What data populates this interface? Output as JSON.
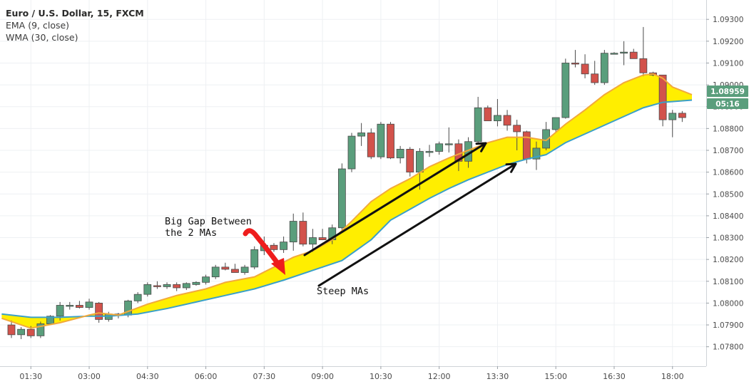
{
  "legend": {
    "title": "Euro / U.S. Dollar, 15, FXCM",
    "ema": "EMA (9, close)",
    "wma": "WMA (30, close)"
  },
  "badges": {
    "price": "1.08959",
    "timer": "05:16"
  },
  "annotations": {
    "gap_line1": "Big Gap Between",
    "gap_line2": "the 2 MAs",
    "steep": "Steep MAs"
  },
  "colors": {
    "bull": "#5a9e7c",
    "bear": "#d2524b",
    "ema": "#f2a93b",
    "wma": "#3aa0c8",
    "fill": "#ffee00",
    "badge": "#5a9e7c",
    "arrow_red": "#ee1c1c"
  },
  "chart_data": {
    "type": "candlestick",
    "title": "Euro / U.S. Dollar, 15, FXCM",
    "x_ticks": [
      "01:30",
      "03:00",
      "04:30",
      "06:00",
      "07:30",
      "09:00",
      "10:30",
      "12:00",
      "13:30",
      "15:00",
      "16:30",
      "18:00"
    ],
    "y_ticks": [
      "1.07800",
      "1.07900",
      "1.08000",
      "1.08100",
      "1.08200",
      "1.08300",
      "1.08400",
      "1.08500",
      "1.08600",
      "1.08700",
      "1.08800",
      "1.08900",
      "1.09000",
      "1.09100",
      "1.09200",
      "1.09300"
    ],
    "ylim": [
      1.0775,
      1.0933
    ],
    "xlim": [
      "01:00",
      "18:30"
    ],
    "candles": [
      {
        "t": "01:00",
        "o": 1.079,
        "h": 1.0792,
        "l": 1.0784,
        "c": 1.07855
      },
      {
        "t": "01:15",
        "o": 1.07855,
        "h": 1.0789,
        "l": 1.07835,
        "c": 1.0788
      },
      {
        "t": "01:30",
        "o": 1.0788,
        "h": 1.07895,
        "l": 1.0784,
        "c": 1.0785
      },
      {
        "t": "01:45",
        "o": 1.0785,
        "h": 1.07915,
        "l": 1.0784,
        "c": 1.07905
      },
      {
        "t": "02:00",
        "o": 1.07905,
        "h": 1.07945,
        "l": 1.079,
        "c": 1.0794
      },
      {
        "t": "02:15",
        "o": 1.0794,
        "h": 1.08005,
        "l": 1.0792,
        "c": 1.0799
      },
      {
        "t": "02:30",
        "o": 1.0799,
        "h": 1.08005,
        "l": 1.0797,
        "c": 1.0799
      },
      {
        "t": "02:45",
        "o": 1.0799,
        "h": 1.0801,
        "l": 1.07975,
        "c": 1.0798
      },
      {
        "t": "03:00",
        "o": 1.0798,
        "h": 1.0802,
        "l": 1.0797,
        "c": 1.08005
      },
      {
        "t": "03:15",
        "o": 1.08,
        "h": 1.08005,
        "l": 1.0791,
        "c": 1.07925
      },
      {
        "t": "03:30",
        "o": 1.07925,
        "h": 1.0796,
        "l": 1.07915,
        "c": 1.0795
      },
      {
        "t": "03:45",
        "o": 1.0795,
        "h": 1.07955,
        "l": 1.0793,
        "c": 1.07945
      },
      {
        "t": "04:00",
        "o": 1.07945,
        "h": 1.08015,
        "l": 1.07935,
        "c": 1.0801
      },
      {
        "t": "04:15",
        "o": 1.0801,
        "h": 1.0805,
        "l": 1.08,
        "c": 1.0804
      },
      {
        "t": "04:30",
        "o": 1.0804,
        "h": 1.08095,
        "l": 1.0803,
        "c": 1.08085
      },
      {
        "t": "04:45",
        "o": 1.0808,
        "h": 1.081,
        "l": 1.08065,
        "c": 1.08075
      },
      {
        "t": "05:00",
        "o": 1.08075,
        "h": 1.08095,
        "l": 1.08065,
        "c": 1.08085
      },
      {
        "t": "05:15",
        "o": 1.08085,
        "h": 1.08095,
        "l": 1.08055,
        "c": 1.0807
      },
      {
        "t": "05:30",
        "o": 1.0807,
        "h": 1.08095,
        "l": 1.0806,
        "c": 1.0809
      },
      {
        "t": "05:45",
        "o": 1.08085,
        "h": 1.081,
        "l": 1.0808,
        "c": 1.08095
      },
      {
        "t": "06:00",
        "o": 1.08095,
        "h": 1.0813,
        "l": 1.08085,
        "c": 1.0812
      },
      {
        "t": "06:15",
        "o": 1.0812,
        "h": 1.08175,
        "l": 1.0811,
        "c": 1.08165
      },
      {
        "t": "06:30",
        "o": 1.08165,
        "h": 1.08185,
        "l": 1.0815,
        "c": 1.08155
      },
      {
        "t": "06:45",
        "o": 1.08155,
        "h": 1.0818,
        "l": 1.0814,
        "c": 1.0814
      },
      {
        "t": "07:00",
        "o": 1.0814,
        "h": 1.08175,
        "l": 1.0813,
        "c": 1.08165
      },
      {
        "t": "07:15",
        "o": 1.08165,
        "h": 1.0826,
        "l": 1.08155,
        "c": 1.08245
      },
      {
        "t": "07:30",
        "o": 1.0824,
        "h": 1.08305,
        "l": 1.0822,
        "c": 1.08265
      },
      {
        "t": "07:45",
        "o": 1.08265,
        "h": 1.08275,
        "l": 1.08235,
        "c": 1.08245
      },
      {
        "t": "08:00",
        "o": 1.08245,
        "h": 1.08305,
        "l": 1.0823,
        "c": 1.0828
      },
      {
        "t": "08:15",
        "o": 1.0828,
        "h": 1.0841,
        "l": 1.0824,
        "c": 1.08375
      },
      {
        "t": "08:30",
        "o": 1.08375,
        "h": 1.08415,
        "l": 1.0826,
        "c": 1.0827
      },
      {
        "t": "08:45",
        "o": 1.0827,
        "h": 1.0834,
        "l": 1.08235,
        "c": 1.083
      },
      {
        "t": "09:00",
        "o": 1.083,
        "h": 1.0834,
        "l": 1.0829,
        "c": 1.0829
      },
      {
        "t": "09:15",
        "o": 1.0829,
        "h": 1.0836,
        "l": 1.0827,
        "c": 1.08345
      },
      {
        "t": "09:30",
        "o": 1.08345,
        "h": 1.0864,
        "l": 1.0833,
        "c": 1.08615
      },
      {
        "t": "09:45",
        "o": 1.08615,
        "h": 1.0878,
        "l": 1.086,
        "c": 1.08765
      },
      {
        "t": "10:00",
        "o": 1.08765,
        "h": 1.08825,
        "l": 1.0872,
        "c": 1.0878
      },
      {
        "t": "10:15",
        "o": 1.0878,
        "h": 1.088,
        "l": 1.0866,
        "c": 1.0867
      },
      {
        "t": "10:30",
        "o": 1.0867,
        "h": 1.0883,
        "l": 1.0866,
        "c": 1.0882
      },
      {
        "t": "10:45",
        "o": 1.0882,
        "h": 1.0883,
        "l": 1.0866,
        "c": 1.08665
      },
      {
        "t": "11:00",
        "o": 1.08665,
        "h": 1.0872,
        "l": 1.0864,
        "c": 1.08705
      },
      {
        "t": "11:15",
        "o": 1.08705,
        "h": 1.08715,
        "l": 1.0858,
        "c": 1.086
      },
      {
        "t": "11:30",
        "o": 1.086,
        "h": 1.0871,
        "l": 1.0852,
        "c": 1.08695
      },
      {
        "t": "11:45",
        "o": 1.08695,
        "h": 1.08725,
        "l": 1.0867,
        "c": 1.08695
      },
      {
        "t": "12:00",
        "o": 1.08695,
        "h": 1.0874,
        "l": 1.0868,
        "c": 1.0873
      },
      {
        "t": "12:15",
        "o": 1.0873,
        "h": 1.08805,
        "l": 1.0869,
        "c": 1.0873
      },
      {
        "t": "12:30",
        "o": 1.0873,
        "h": 1.0875,
        "l": 1.08605,
        "c": 1.0865
      },
      {
        "t": "12:45",
        "o": 1.0865,
        "h": 1.0876,
        "l": 1.0862,
        "c": 1.0874
      },
      {
        "t": "13:00",
        "o": 1.0874,
        "h": 1.08945,
        "l": 1.0873,
        "c": 1.08895
      },
      {
        "t": "13:15",
        "o": 1.08895,
        "h": 1.08905,
        "l": 1.0884,
        "c": 1.08835
      },
      {
        "t": "13:30",
        "o": 1.08835,
        "h": 1.08935,
        "l": 1.0881,
        "c": 1.0886
      },
      {
        "t": "13:45",
        "o": 1.0886,
        "h": 1.08885,
        "l": 1.0879,
        "c": 1.08815
      },
      {
        "t": "14:00",
        "o": 1.08815,
        "h": 1.0884,
        "l": 1.087,
        "c": 1.08785
      },
      {
        "t": "14:15",
        "o": 1.08785,
        "h": 1.0879,
        "l": 1.0864,
        "c": 1.0866
      },
      {
        "t": "14:30",
        "o": 1.0866,
        "h": 1.0874,
        "l": 1.0861,
        "c": 1.0871
      },
      {
        "t": "14:45",
        "o": 1.0871,
        "h": 1.0883,
        "l": 1.087,
        "c": 1.08795
      },
      {
        "t": "15:00",
        "o": 1.08795,
        "h": 1.0885,
        "l": 1.0878,
        "c": 1.0885
      },
      {
        "t": "15:15",
        "o": 1.0885,
        "h": 1.0912,
        "l": 1.08845,
        "c": 1.091
      },
      {
        "t": "15:30",
        "o": 1.091,
        "h": 1.0916,
        "l": 1.0908,
        "c": 1.09095
      },
      {
        "t": "15:45",
        "o": 1.09095,
        "h": 1.0914,
        "l": 1.0903,
        "c": 1.0905
      },
      {
        "t": "16:00",
        "o": 1.0905,
        "h": 1.0911,
        "l": 1.09,
        "c": 1.0901
      },
      {
        "t": "16:15",
        "o": 1.0901,
        "h": 1.0916,
        "l": 1.09,
        "c": 1.09145
      },
      {
        "t": "16:30",
        "o": 1.0914,
        "h": 1.0915,
        "l": 1.0914,
        "c": 1.09145
      },
      {
        "t": "16:45",
        "o": 1.09145,
        "h": 1.092,
        "l": 1.0909,
        "c": 1.0915
      },
      {
        "t": "17:00",
        "o": 1.0915,
        "h": 1.09165,
        "l": 1.0912,
        "c": 1.0912
      },
      {
        "t": "17:15",
        "o": 1.0912,
        "h": 1.09265,
        "l": 1.0904,
        "c": 1.09055
      },
      {
        "t": "17:30",
        "o": 1.09055,
        "h": 1.0906,
        "l": 1.0904,
        "c": 1.09045
      },
      {
        "t": "17:45",
        "o": 1.09045,
        "h": 1.09045,
        "l": 1.0881,
        "c": 1.0884
      },
      {
        "t": "18:00",
        "o": 1.0884,
        "h": 1.08885,
        "l": 1.0876,
        "c": 1.0887
      },
      {
        "t": "18:15",
        "o": 1.0887,
        "h": 1.0888,
        "l": 1.0883,
        "c": 1.0885
      }
    ],
    "series": [
      {
        "name": "EMA (9, close)",
        "type": "line",
        "points": [
          [
            "00:45",
            1.0793
          ],
          [
            "01:30",
            1.07885
          ],
          [
            "02:15",
            1.0791
          ],
          [
            "03:00",
            1.07945
          ],
          [
            "03:15",
            1.07955
          ],
          [
            "03:45",
            1.07945
          ],
          [
            "04:30",
            1.07995
          ],
          [
            "05:15",
            1.08035
          ],
          [
            "06:00",
            1.08065
          ],
          [
            "06:30",
            1.08095
          ],
          [
            "07:15",
            1.0812
          ],
          [
            "07:45",
            1.08165
          ],
          [
            "08:15",
            1.0821
          ],
          [
            "08:45",
            1.0824
          ],
          [
            "09:15",
            1.0829
          ],
          [
            "09:45",
            1.08375
          ],
          [
            "10:15",
            1.08465
          ],
          [
            "10:45",
            1.08525
          ],
          [
            "11:15",
            1.0857
          ],
          [
            "11:45",
            1.08625
          ],
          [
            "12:15",
            1.08665
          ],
          [
            "12:45",
            1.087
          ],
          [
            "13:15",
            1.08735
          ],
          [
            "13:45",
            1.0876
          ],
          [
            "14:15",
            1.0876
          ],
          [
            "14:45",
            1.08745
          ],
          [
            "15:15",
            1.0882
          ],
          [
            "15:45",
            1.08885
          ],
          [
            "16:15",
            1.08955
          ],
          [
            "16:45",
            1.0901
          ],
          [
            "17:15",
            1.09045
          ],
          [
            "17:30",
            1.0905
          ],
          [
            "17:45",
            1.0903
          ],
          [
            "18:00",
            1.0899
          ],
          [
            "18:30",
            1.08955
          ]
        ]
      },
      {
        "name": "WMA (30, close)",
        "type": "line",
        "points": [
          [
            "00:45",
            1.0795
          ],
          [
            "01:30",
            1.07935
          ],
          [
            "02:15",
            1.07935
          ],
          [
            "03:00",
            1.0794
          ],
          [
            "03:30",
            1.0794
          ],
          [
            "04:15",
            1.0795
          ],
          [
            "05:00",
            1.07975
          ],
          [
            "05:45",
            1.08005
          ],
          [
            "06:30",
            1.08035
          ],
          [
            "07:15",
            1.08065
          ],
          [
            "08:00",
            1.08105
          ],
          [
            "08:45",
            1.0815
          ],
          [
            "09:30",
            1.08195
          ],
          [
            "10:15",
            1.0829
          ],
          [
            "10:45",
            1.0838
          ],
          [
            "11:15",
            1.0843
          ],
          [
            "11:45",
            1.0848
          ],
          [
            "12:15",
            1.08525
          ],
          [
            "12:45",
            1.08565
          ],
          [
            "13:15",
            1.086
          ],
          [
            "13:45",
            1.08635
          ],
          [
            "14:15",
            1.0866
          ],
          [
            "14:45",
            1.0868
          ],
          [
            "15:15",
            1.08735
          ],
          [
            "15:45",
            1.08775
          ],
          [
            "16:15",
            1.08815
          ],
          [
            "16:45",
            1.08855
          ],
          [
            "17:15",
            1.08895
          ],
          [
            "17:45",
            1.0892
          ],
          [
            "18:30",
            1.0893
          ]
        ]
      }
    ],
    "current_price": 1.08959,
    "grid": true
  }
}
